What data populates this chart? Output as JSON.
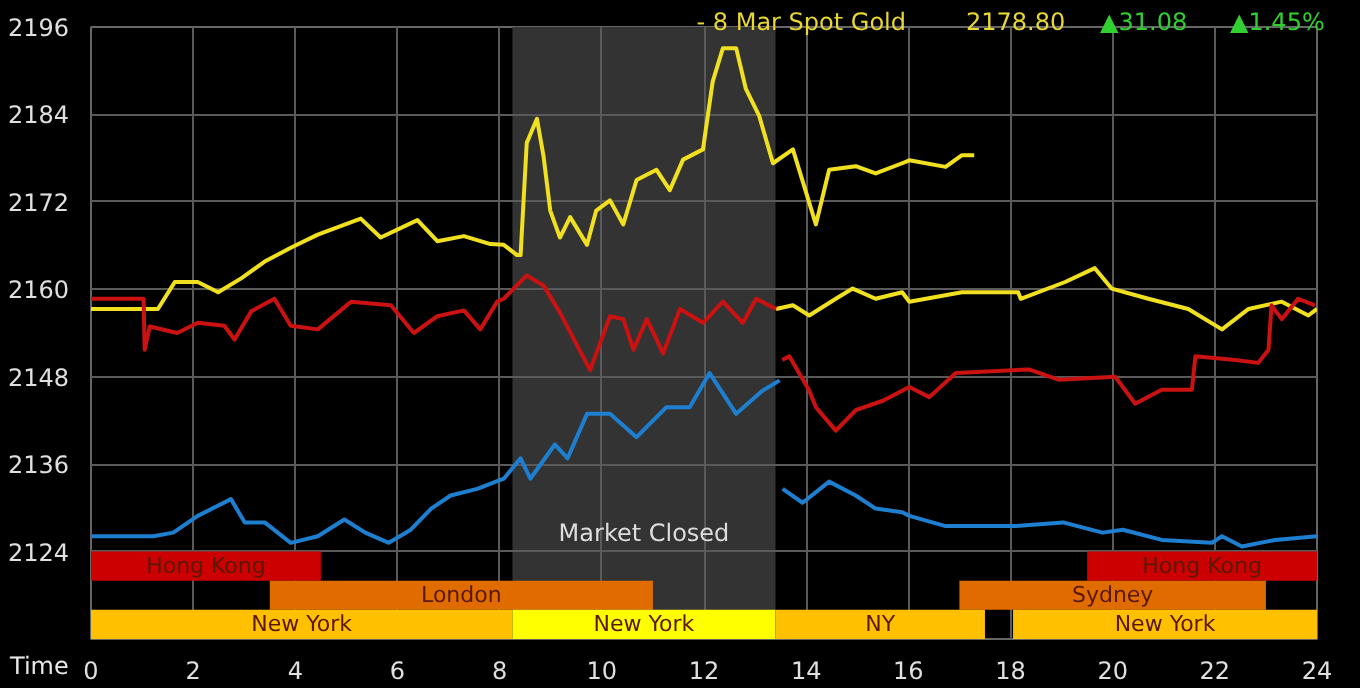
{
  "chart_data": {
    "type": "line",
    "title": "- 8 Mar Spot Gold",
    "xlabel": "Time",
    "annotations": [
      "2178.80",
      "▲31.08",
      "▲1.45%"
    ],
    "xlim": [
      0,
      24
    ],
    "xticks": [
      0,
      2,
      4,
      6,
      8,
      10,
      12,
      14,
      16,
      18,
      20,
      22,
      24
    ],
    "ylim": [
      2112,
      2196
    ],
    "yticks": [
      2124,
      2136,
      2148,
      2160,
      2172,
      2184,
      2196
    ],
    "grid": true,
    "marker": "none",
    "line_style": "solid",
    "series": [
      {
        "color": "#f0e020",
        "x": [
          0,
          1.31,
          1.64,
          2.09,
          2.49,
          2.94,
          3.4,
          3.91,
          4.44,
          5.28,
          5.67,
          6.39,
          6.78,
          7.3,
          7.82,
          8.08,
          8.34,
          8.41,
          8.53,
          8.73,
          8.86,
          8.99,
          9.18,
          9.38,
          9.71,
          9.89,
          10.16,
          10.42,
          10.68,
          11.07,
          11.33,
          11.59,
          11.98,
          12.17,
          12.37,
          12.63,
          12.82,
          13.08,
          13.35,
          13.74,
          14.19,
          14.45,
          14.97,
          15.36,
          15.88,
          16.02,
          16.73,
          17.05,
          17.29
        ],
        "values": [
          2157.3,
          2157.3,
          2161.0,
          2161.0,
          2159.6,
          2161.5,
          2163.8,
          2165.7,
          2167.5,
          2169.7,
          2167.1,
          2169.5,
          2166.6,
          2167.3,
          2166.2,
          2166.1,
          2164.7,
          2164.7,
          2180.1,
          2183.4,
          2178.2,
          2170.8,
          2167.1,
          2169.9,
          2166.1,
          2170.8,
          2172.2,
          2168.9,
          2175.0,
          2176.4,
          2173.6,
          2177.8,
          2179.2,
          2188.5,
          2193.1,
          2193.1,
          2187.5,
          2183.8,
          2177.3,
          2179.2,
          2168.9,
          2176.4,
          2176.9,
          2175.9,
          2177.3,
          2177.7,
          2176.8,
          2178.4,
          2178.4
        ]
      },
      {
        "color": "#f0e020",
        "x": [
          13.41,
          13.74,
          14.06,
          14.58,
          14.91,
          15.36,
          15.88,
          16.02,
          17.05,
          18.15,
          18.2,
          19.07,
          19.65,
          19.98,
          20.7,
          21.48,
          22.14,
          22.66,
          23.31,
          23.83,
          24.0
        ],
        "values": [
          2157.3,
          2157.8,
          2156.4,
          2158.7,
          2160.1,
          2158.7,
          2159.6,
          2158.3,
          2159.6,
          2159.6,
          2158.7,
          2161.0,
          2162.9,
          2160.1,
          2158.7,
          2157.3,
          2154.5,
          2157.3,
          2158.3,
          2156.4,
          2157.3
        ]
      },
      {
        "color": "#cc1111",
        "x": [
          0,
          1.03,
          1.05,
          1.15,
          1.69,
          2.09,
          2.61,
          2.81,
          3.14,
          3.59,
          3.91,
          4.44,
          5.09,
          5.87,
          6.32,
          6.78,
          7.3,
          7.62,
          7.95,
          8.08,
          8.53,
          8.86,
          9.18,
          9.77,
          10.16,
          10.42,
          10.62,
          10.88,
          11.2,
          11.53,
          11.98,
          12.37,
          12.76,
          13.02,
          13.41,
          13.47,
          13.53,
          13.67,
          14.06,
          14.19,
          14.58,
          14.97,
          15.5,
          16.02,
          16.41,
          16.93,
          18.36,
          18.94,
          20.05,
          20.44,
          20.96,
          21.55,
          21.62,
          22.4,
          22.85,
          23.05,
          23.11,
          23.31,
          23.63,
          23.96
        ],
        "values": [
          2158.7,
          2158.7,
          2151.7,
          2154.9,
          2154.0,
          2155.4,
          2155.0,
          2153.1,
          2157.0,
          2158.7,
          2155.0,
          2154.5,
          2158.3,
          2157.8,
          2154.0,
          2156.3,
          2157.1,
          2154.5,
          2158.3,
          2158.7,
          2161.9,
          2160.5,
          2156.8,
          2148.9,
          2156.3,
          2155.9,
          2151.7,
          2155.9,
          2151.2,
          2157.3,
          2155.4,
          2158.3,
          2155.4,
          2158.7,
          2157.3,
          null,
          2150.3,
          2150.8,
          2146.1,
          2143.8,
          2140.6,
          2143.4,
          2144.7,
          2146.6,
          2145.2,
          2148.5,
          2149.0,
          2147.6,
          2148.0,
          2144.3,
          2146.2,
          2146.2,
          2150.8,
          2150.3,
          2149.9,
          2151.7,
          2157.8,
          2155.9,
          2158.7,
          2157.8
        ]
      },
      {
        "color": "#1e7fd0",
        "x": [
          0,
          1.22,
          1.61,
          2.09,
          2.74,
          3.01,
          3.4,
          3.91,
          4.44,
          4.96,
          5.37,
          5.83,
          6.26,
          6.66,
          7.04,
          7.56,
          8.08,
          8.41,
          8.6,
          9.08,
          9.33,
          9.71,
          10.16,
          10.68,
          11.26,
          11.72,
          12.11,
          12.63,
          13.15,
          13.48,
          13.51,
          13.54,
          13.93,
          14.45,
          14.97,
          15.36,
          15.88,
          16.02,
          16.73,
          18.1,
          19.03,
          19.8,
          20.2,
          20.96,
          21.94,
          22.14,
          22.53,
          23.18,
          24.0
        ],
        "values": [
          2126.1,
          2126.1,
          2126.6,
          2128.9,
          2131.2,
          2128.0,
          2128.0,
          2125.2,
          2126.1,
          2128.4,
          2126.6,
          2125.2,
          2127.0,
          2129.9,
          2131.7,
          2132.6,
          2134.0,
          2136.8,
          2134.0,
          2138.7,
          2136.8,
          2142.9,
          2142.9,
          2139.7,
          2143.8,
          2143.8,
          2148.5,
          2142.9,
          2146.1,
          2147.5,
          null,
          2132.6,
          2130.7,
          2133.6,
          2131.7,
          2129.9,
          2129.4,
          2128.9,
          2127.5,
          2127.5,
          2128.0,
          2126.6,
          2127.0,
          2125.6,
          2125.2,
          2126.1,
          2124.7,
          2125.6,
          2126.1
        ]
      }
    ],
    "bands": [
      {
        "axis": "x",
        "from": 8.25,
        "to": 13.4,
        "label": "Market Closed",
        "color": "#333333"
      },
      {
        "axis": "x",
        "from": 0,
        "to": 4.5,
        "label": "Hong Kong",
        "color": "#cc0000"
      },
      {
        "axis": "x",
        "from": 19.5,
        "to": 24,
        "label": "Hong Kong",
        "color": "#cc0000"
      },
      {
        "axis": "x",
        "from": 3.5,
        "to": 11,
        "label": "London",
        "color": "#e06c00"
      },
      {
        "axis": "x",
        "from": 17,
        "to": 23,
        "label": "Sydney",
        "color": "#e06c00"
      },
      {
        "axis": "x",
        "from": 0,
        "to": 8.25,
        "label": "New York",
        "color": "#ffc000"
      },
      {
        "axis": "x",
        "from": 8.25,
        "to": 13.4,
        "label": "New York",
        "color": "#ffff00"
      },
      {
        "axis": "x",
        "from": 13.4,
        "to": 17.5,
        "label": "NY",
        "color": "#ffc000"
      },
      {
        "axis": "x",
        "from": 18.05,
        "to": 24,
        "label": "New York",
        "color": "#ffc000"
      }
    ]
  }
}
